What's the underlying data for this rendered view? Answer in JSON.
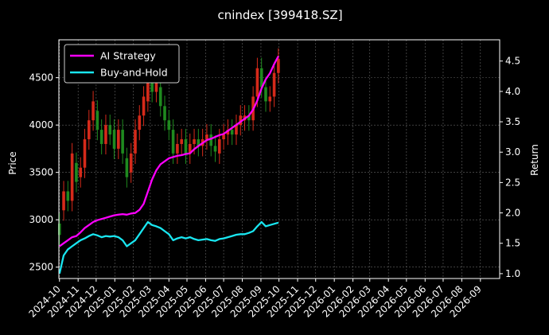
{
  "chart_data": {
    "type": "line",
    "title": "cnindex [399418.SZ]",
    "xlabel": "",
    "ylabel": "Price",
    "ylabel_right": "Return",
    "x_ticks": [
      "2024-10",
      "2024-11",
      "2024-12",
      "2025-01",
      "2025-02",
      "2025-03",
      "2025-04",
      "2025-05",
      "2025-06",
      "2025-07",
      "2025-08",
      "2025-09",
      "2025-10",
      "2025-11",
      "2025-12",
      "2026-01",
      "2026-02",
      "2026-03",
      "2026-04",
      "2026-05",
      "2026-06",
      "2026-07",
      "2026-08",
      "2026-09"
    ],
    "x_range": [
      "2024-09-30",
      "2026-10-03"
    ],
    "ylim_left": [
      2380,
      4900
    ],
    "ylim_right": [
      0.92,
      4.85
    ],
    "y_ticks_left": [
      2500,
      3000,
      3500,
      4000,
      4500
    ],
    "y_ticks_right": [
      1.0,
      1.5,
      2.0,
      2.5,
      3.0,
      3.5,
      4.0,
      4.5
    ],
    "grid": true,
    "legend_position": "top-left",
    "candle_colors": {
      "up": "#d62a1a",
      "down": "#1f8a1f"
    },
    "price_candles": [
      [
        "2024-10-01",
        2960,
        2840
      ],
      [
        "2024-10-08",
        3100,
        3300
      ],
      [
        "2024-10-15",
        3300,
        3200
      ],
      [
        "2024-10-22",
        3200,
        3700
      ],
      [
        "2024-10-29",
        3600,
        3400
      ],
      [
        "2024-11-05",
        3450,
        3550
      ],
      [
        "2024-11-12",
        3550,
        3850
      ],
      [
        "2024-11-19",
        3850,
        4050
      ],
      [
        "2024-11-26",
        4050,
        4250
      ],
      [
        "2024-12-03",
        4150,
        3950
      ],
      [
        "2024-12-10",
        3950,
        3800
      ],
      [
        "2024-12-17",
        3800,
        4000
      ],
      [
        "2024-12-24",
        4000,
        3900
      ],
      [
        "2024-12-31",
        3950,
        3750
      ],
      [
        "2025-01-07",
        3750,
        3950
      ],
      [
        "2025-01-14",
        3950,
        3700
      ],
      [
        "2025-01-21",
        3650,
        3450
      ],
      [
        "2025-01-28",
        3500,
        3700
      ],
      [
        "2025-02-04",
        3700,
        3950
      ],
      [
        "2025-02-11",
        3950,
        4100
      ],
      [
        "2025-02-18",
        4100,
        4300
      ],
      [
        "2025-02-25",
        4250,
        4450
      ],
      [
        "2025-03-04",
        4450,
        4350
      ],
      [
        "2025-03-11",
        4350,
        4500
      ],
      [
        "2025-03-18",
        4400,
        4200
      ],
      [
        "2025-03-25",
        4200,
        4050
      ],
      [
        "2025-04-01",
        4050,
        3950
      ],
      [
        "2025-04-08",
        3950,
        3700
      ],
      [
        "2025-04-15",
        3700,
        3800
      ],
      [
        "2025-04-22",
        3800,
        3850
      ],
      [
        "2025-04-29",
        3850,
        3700
      ],
      [
        "2025-05-06",
        3700,
        3800
      ],
      [
        "2025-05-13",
        3800,
        3850
      ],
      [
        "2025-05-20",
        3850,
        3780
      ],
      [
        "2025-05-27",
        3780,
        3850
      ],
      [
        "2025-06-03",
        3850,
        3900
      ],
      [
        "2025-06-10",
        3900,
        3780
      ],
      [
        "2025-06-17",
        3780,
        3720
      ],
      [
        "2025-06-24",
        3700,
        3850
      ],
      [
        "2025-07-01",
        3850,
        3900
      ],
      [
        "2025-07-08",
        3900,
        3950
      ],
      [
        "2025-07-15",
        3950,
        3900
      ],
      [
        "2025-07-22",
        3900,
        4000
      ],
      [
        "2025-07-29",
        4000,
        4100
      ],
      [
        "2025-08-05",
        4050,
        4100
      ],
      [
        "2025-08-12",
        4100,
        4050
      ],
      [
        "2025-08-19",
        4050,
        4300
      ],
      [
        "2025-08-26",
        4300,
        4600
      ],
      [
        "2025-09-02",
        4600,
        4400
      ],
      [
        "2025-09-09",
        4400,
        4250
      ],
      [
        "2025-09-16",
        4250,
        4300
      ],
      [
        "2025-09-23",
        4300,
        4550
      ],
      [
        "2025-09-30",
        4550,
        4700
      ]
    ],
    "series": [
      {
        "name": "AI Strategy",
        "color": "#ff00ff",
        "axis": "right",
        "x": [
          "2024-10-01",
          "2024-10-08",
          "2024-10-15",
          "2024-10-22",
          "2024-10-29",
          "2024-11-05",
          "2024-11-12",
          "2024-11-19",
          "2024-11-26",
          "2024-12-03",
          "2024-12-10",
          "2024-12-17",
          "2024-12-24",
          "2024-12-31",
          "2025-01-07",
          "2025-01-14",
          "2025-01-21",
          "2025-01-28",
          "2025-02-04",
          "2025-02-11",
          "2025-02-18",
          "2025-02-25",
          "2025-03-04",
          "2025-03-11",
          "2025-03-18",
          "2025-03-25",
          "2025-04-01",
          "2025-04-08",
          "2025-04-15",
          "2025-04-22",
          "2025-04-29",
          "2025-05-06",
          "2025-05-13",
          "2025-05-20",
          "2025-05-27",
          "2025-06-03",
          "2025-06-10",
          "2025-06-17",
          "2025-06-24",
          "2025-07-01",
          "2025-07-08",
          "2025-07-15",
          "2025-07-22",
          "2025-07-29",
          "2025-08-05",
          "2025-08-12",
          "2025-08-19",
          "2025-08-26",
          "2025-09-02",
          "2025-09-09",
          "2025-09-16",
          "2025-09-23",
          "2025-09-30"
        ],
        "values": [
          1.45,
          1.5,
          1.55,
          1.6,
          1.62,
          1.68,
          1.75,
          1.8,
          1.85,
          1.88,
          1.9,
          1.92,
          1.94,
          1.96,
          1.97,
          1.98,
          1.97,
          1.99,
          2.0,
          2.05,
          2.15,
          2.35,
          2.55,
          2.7,
          2.8,
          2.85,
          2.9,
          2.92,
          2.94,
          2.95,
          2.97,
          2.98,
          3.05,
          3.1,
          3.15,
          3.2,
          3.22,
          3.25,
          3.28,
          3.3,
          3.35,
          3.4,
          3.45,
          3.5,
          3.55,
          3.6,
          3.7,
          3.85,
          4.05,
          4.2,
          4.3,
          4.45,
          4.58
        ]
      },
      {
        "name": "Buy-and-Hold",
        "color": "#19e6f0",
        "axis": "right",
        "x": [
          "2024-10-01",
          "2024-10-08",
          "2024-10-15",
          "2024-10-22",
          "2024-10-29",
          "2024-11-05",
          "2024-11-12",
          "2024-11-19",
          "2024-11-26",
          "2024-12-03",
          "2024-12-10",
          "2024-12-17",
          "2024-12-24",
          "2024-12-31",
          "2025-01-07",
          "2025-01-14",
          "2025-01-21",
          "2025-01-28",
          "2025-02-04",
          "2025-02-11",
          "2025-02-18",
          "2025-02-25",
          "2025-03-04",
          "2025-03-11",
          "2025-03-18",
          "2025-03-25",
          "2025-04-01",
          "2025-04-08",
          "2025-04-15",
          "2025-04-22",
          "2025-04-29",
          "2025-05-06",
          "2025-05-13",
          "2025-05-20",
          "2025-05-27",
          "2025-06-03",
          "2025-06-10",
          "2025-06-17",
          "2025-06-24",
          "2025-07-01",
          "2025-07-08",
          "2025-07-15",
          "2025-07-22",
          "2025-07-29",
          "2025-08-05",
          "2025-08-12",
          "2025-08-19",
          "2025-08-26",
          "2025-09-02",
          "2025-09-09",
          "2025-09-16",
          "2025-09-23",
          "2025-09-30"
        ],
        "values": [
          1.0,
          1.3,
          1.4,
          1.45,
          1.5,
          1.55,
          1.58,
          1.62,
          1.65,
          1.63,
          1.6,
          1.62,
          1.61,
          1.62,
          1.6,
          1.55,
          1.45,
          1.5,
          1.55,
          1.65,
          1.75,
          1.85,
          1.8,
          1.78,
          1.75,
          1.7,
          1.65,
          1.55,
          1.58,
          1.6,
          1.58,
          1.6,
          1.57,
          1.55,
          1.56,
          1.57,
          1.55,
          1.54,
          1.57,
          1.58,
          1.6,
          1.62,
          1.64,
          1.65,
          1.65,
          1.67,
          1.7,
          1.78,
          1.85,
          1.78,
          1.8,
          1.82,
          1.84
        ]
      }
    ]
  }
}
